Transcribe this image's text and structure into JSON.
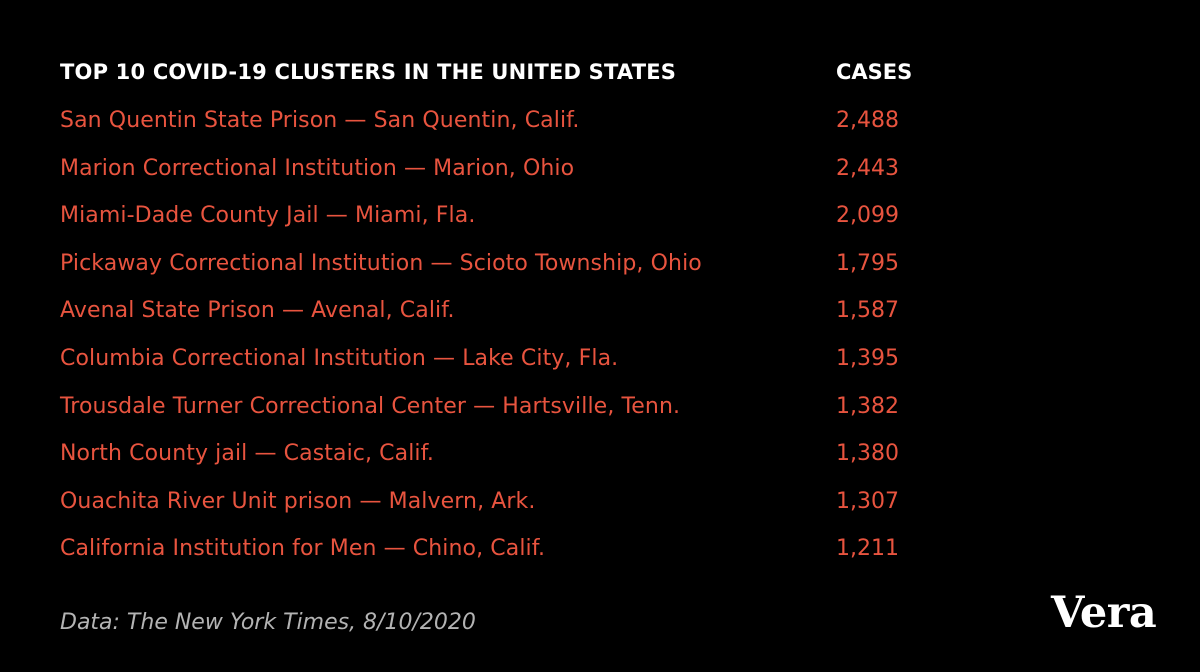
{
  "chart_data": {
    "type": "table",
    "title": "TOP 10 COVID-19 CLUSTERS IN THE UNITED STATES",
    "columns": [
      "TOP 10 COVID-19 CLUSTERS IN THE UNITED STATES",
      "CASES"
    ],
    "rows": [
      {
        "name": "San Quentin State Prison — San Quentin, Calif.",
        "cases": "2,488"
      },
      {
        "name": "Marion Correctional Institution — Marion, Ohio",
        "cases": "2,443"
      },
      {
        "name": "Miami-Dade County Jail — Miami, Fla.",
        "cases": "2,099"
      },
      {
        "name": "Pickaway Correctional Institution — Scioto Township, Ohio",
        "cases": "1,795"
      },
      {
        "name": "Avenal State Prison — Avenal, Calif.",
        "cases": "1,587"
      },
      {
        "name": "Columbia Correctional Institution — Lake City, Fla.",
        "cases": "1,395"
      },
      {
        "name": "Trousdale Turner Correctional Center — Hartsville, Tenn.",
        "cases": "1,382"
      },
      {
        "name": "North County jail — Castaic, Calif.",
        "cases": "1,380"
      },
      {
        "name": "Ouachita River Unit prison — Malvern, Ark.",
        "cases": "1,307"
      },
      {
        "name": "California Institution for Men — Chino, Calif.",
        "cases": "1,211"
      }
    ]
  },
  "header": {
    "title": "TOP 10 COVID-19 CLUSTERS IN THE UNITED STATES",
    "cases_label": "CASES"
  },
  "source": "Data: The New York Times, 8/10/2020",
  "logo": "Vera",
  "colors": {
    "background": "#000000",
    "header_text": "#ffffff",
    "row_text": "#e8543f",
    "source_text": "#b3b3b3"
  }
}
